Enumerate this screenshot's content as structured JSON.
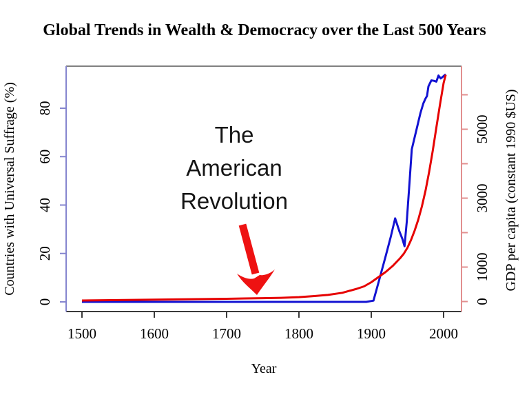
{
  "figure": {
    "title": "Global Trends in Wealth & Democracy over the Last 500 Years"
  },
  "annotation": {
    "line1": "The",
    "line2": "American",
    "line3": "Revolution"
  },
  "colors": {
    "suffrage_line": "#1212d2",
    "gdp_line": "#e60000",
    "left_axis": "#8585cf",
    "right_axis": "#e28f8f",
    "box_top": "#808080",
    "box_bottom": "#3a3a3a",
    "tick_black": "#3a3a3a",
    "arrow": "#ee1212"
  },
  "chart_data": {
    "type": "line",
    "title": "Global Trends in Wealth & Democracy over the Last 500 Years",
    "xlabel": "Year",
    "x_ticks": [
      1500,
      1600,
      1700,
      1800,
      1900,
      2000
    ],
    "xlim": [
      1478,
      2024
    ],
    "grid": false,
    "legend": "none",
    "axes": {
      "left": {
        "label": "Countries with Universal Suffrage (%)",
        "ticks": [
          0,
          20,
          40,
          60,
          80
        ],
        "lim": [
          -4,
          97
        ],
        "color": "blue"
      },
      "right": {
        "label": "GDP per capita (constant 1990 $US)",
        "tick_marks": [
          0,
          1000,
          2000,
          3000,
          4000,
          5000,
          6000
        ],
        "tick_labels": [
          0,
          1000,
          3000,
          5000
        ],
        "lim": [
          -80,
          6830
        ],
        "color": "red"
      }
    },
    "series": [
      {
        "id": "suffrage",
        "name": "Countries with Universal Suffrage (%)",
        "axis": "left",
        "points": [
          [
            1500,
            0
          ],
          [
            1550,
            0
          ],
          [
            1600,
            0
          ],
          [
            1650,
            0
          ],
          [
            1700,
            0
          ],
          [
            1750,
            0
          ],
          [
            1800,
            0
          ],
          [
            1850,
            0
          ],
          [
            1893,
            0
          ],
          [
            1903,
            0.5
          ],
          [
            1910,
            8
          ],
          [
            1920,
            19
          ],
          [
            1927,
            27
          ],
          [
            1933,
            34.5
          ],
          [
            1939,
            29
          ],
          [
            1943,
            26
          ],
          [
            1946,
            23
          ],
          [
            1949,
            33
          ],
          [
            1953,
            50
          ],
          [
            1956,
            63
          ],
          [
            1960,
            68
          ],
          [
            1964,
            73
          ],
          [
            1968,
            78
          ],
          [
            1972,
            82
          ],
          [
            1975,
            84
          ],
          [
            1977,
            85
          ],
          [
            1979,
            89
          ],
          [
            1983,
            91.5
          ],
          [
            1987,
            91.3
          ],
          [
            1990,
            91
          ],
          [
            1993,
            93.5
          ],
          [
            1996,
            92.3
          ],
          [
            1999,
            93
          ],
          [
            2003,
            94
          ]
        ]
      },
      {
        "id": "gdp",
        "name": "GDP per capita (constant 1990 $US)",
        "axis": "right",
        "points": [
          [
            1500,
            30
          ],
          [
            1550,
            42
          ],
          [
            1600,
            55
          ],
          [
            1650,
            68
          ],
          [
            1700,
            80
          ],
          [
            1725,
            90
          ],
          [
            1750,
            98
          ],
          [
            1775,
            108
          ],
          [
            1800,
            128
          ],
          [
            1820,
            158
          ],
          [
            1840,
            192
          ],
          [
            1860,
            255
          ],
          [
            1880,
            370
          ],
          [
            1890,
            440
          ],
          [
            1900,
            560
          ],
          [
            1910,
            710
          ],
          [
            1920,
            860
          ],
          [
            1930,
            1040
          ],
          [
            1940,
            1260
          ],
          [
            1945,
            1390
          ],
          [
            1950,
            1560
          ],
          [
            1955,
            1790
          ],
          [
            1960,
            2060
          ],
          [
            1965,
            2380
          ],
          [
            1970,
            2760
          ],
          [
            1975,
            3220
          ],
          [
            1980,
            3760
          ],
          [
            1985,
            4380
          ],
          [
            1990,
            5050
          ],
          [
            1995,
            5720
          ],
          [
            2000,
            6340
          ],
          [
            2003,
            6580
          ]
        ]
      }
    ],
    "annotation": {
      "text": "The American Revolution",
      "arrow_points_to_year": 1765
    }
  }
}
